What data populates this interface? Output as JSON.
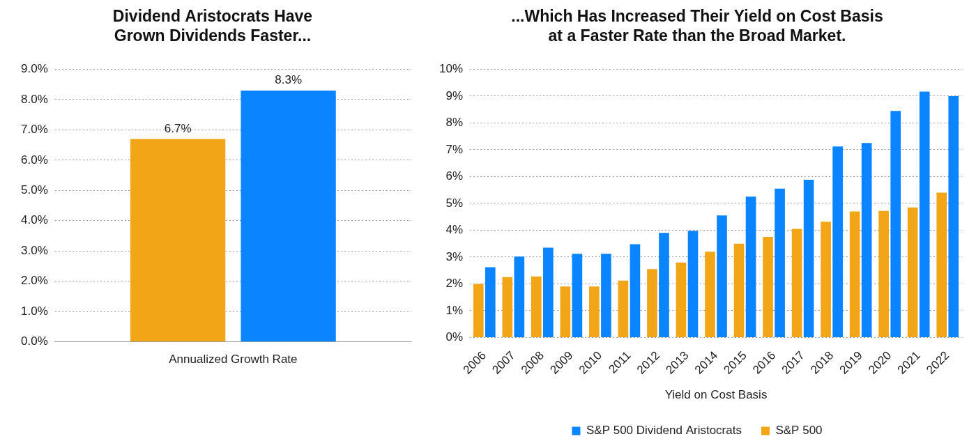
{
  "chart_data": [
    {
      "type": "bar",
      "title": "Dividend Aristocrats Have\nGrown Dividends Faster...",
      "categories": [
        "Annualized Growth Rate"
      ],
      "series": [
        {
          "name": "S&P 500",
          "color": "#F2A516",
          "values": [
            6.7
          ],
          "value_labels": [
            "6.7%"
          ]
        },
        {
          "name": "S&P 500 Dividend Aristocrats",
          "color": "#0A84FF",
          "values": [
            8.3
          ],
          "value_labels": [
            "8.3%"
          ]
        }
      ],
      "ylim": [
        0,
        9
      ],
      "yticks": [
        {
          "value": 0,
          "label": "0.0%"
        },
        {
          "value": 1,
          "label": "1.0%"
        },
        {
          "value": 2,
          "label": "2.0%"
        },
        {
          "value": 3,
          "label": "3.0%"
        },
        {
          "value": 4,
          "label": "4.0%"
        },
        {
          "value": 5,
          "label": "5.0%"
        },
        {
          "value": 6,
          "label": "6.0%"
        },
        {
          "value": 7,
          "label": "7.0%"
        },
        {
          "value": 8,
          "label": "8.0%"
        },
        {
          "value": 9,
          "label": "9.0%"
        }
      ],
      "grid": true,
      "data_labels": true
    },
    {
      "type": "bar",
      "title": "...Which Has Increased Their Yield on Cost Basis\nat a Faster Rate than the Broad Market.",
      "xlabel": "Yield on Cost Basis",
      "categories": [
        "2006",
        "2007",
        "2008",
        "2009",
        "2010",
        "2011",
        "2012",
        "2013",
        "2014",
        "2015",
        "2016",
        "2017",
        "2018",
        "2019",
        "2020",
        "2021",
        "2022"
      ],
      "series": [
        {
          "name": "S&P 500",
          "color": "#F2A516",
          "values": [
            2.0,
            2.25,
            2.28,
            1.9,
            1.9,
            2.12,
            2.55,
            2.8,
            3.2,
            3.5,
            3.75,
            4.05,
            4.32,
            4.7,
            4.72,
            4.85,
            5.4
          ]
        },
        {
          "name": "S&P 500 Dividend Aristocrats",
          "color": "#0A84FF",
          "values": [
            2.62,
            3.02,
            3.35,
            3.12,
            3.12,
            3.48,
            3.9,
            3.98,
            4.55,
            5.25,
            5.55,
            5.88,
            7.12,
            7.25,
            8.45,
            9.17,
            9.0
          ]
        }
      ],
      "ylim": [
        0,
        10
      ],
      "yticks": [
        {
          "value": 0,
          "label": "0%"
        },
        {
          "value": 1,
          "label": "1%"
        },
        {
          "value": 2,
          "label": "2%"
        },
        {
          "value": 3,
          "label": "3%"
        },
        {
          "value": 4,
          "label": "4%"
        },
        {
          "value": 5,
          "label": "5%"
        },
        {
          "value": 6,
          "label": "6%"
        },
        {
          "value": 7,
          "label": "7%"
        },
        {
          "value": 8,
          "label": "8%"
        },
        {
          "value": 9,
          "label": "9%"
        },
        {
          "value": 10,
          "label": "10%"
        }
      ],
      "grid": true,
      "legend": "bottom"
    }
  ]
}
